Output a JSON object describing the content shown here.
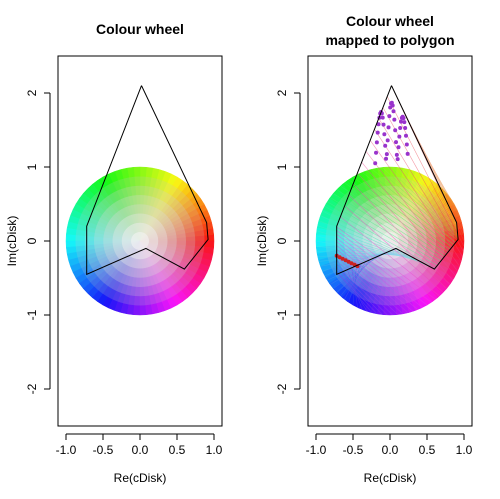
{
  "chart_data": [
    {
      "type": "scatter",
      "title": "Colour wheel",
      "xlabel": "Re(cDisk)",
      "ylabel": "Im(cDisk)",
      "xlim": [
        -1.0,
        1.0
      ],
      "ylim": [
        -2.5,
        2.5
      ],
      "x_ticks": [
        -1.0,
        -0.5,
        0.0,
        0.5,
        1.0
      ],
      "x_tick_labels": [
        "-1.0",
        "-0.5",
        "0.0",
        "0.5",
        "1.0"
      ],
      "y_ticks": [
        -2,
        -1,
        0,
        1,
        2
      ],
      "y_tick_labels": [
        "-2",
        "-1",
        "0",
        "1",
        "2"
      ],
      "disk": {
        "center": [
          0,
          0
        ],
        "radius": 1.0,
        "coloring": "hue by argument, saturation by modulus"
      },
      "polygon": [
        [
          0.02,
          2.1
        ],
        [
          0.9,
          0.25
        ],
        [
          0.92,
          0.02
        ],
        [
          0.6,
          -0.38
        ],
        [
          0.08,
          -0.1
        ],
        [
          -0.72,
          -0.45
        ],
        [
          -0.72,
          0.2
        ],
        [
          0.02,
          2.1
        ]
      ]
    },
    {
      "type": "scatter",
      "title": "Colour wheel\nmapped to polygon",
      "title_lines": [
        "Colour wheel",
        "mapped to polygon"
      ],
      "xlabel": "Re(cDisk)",
      "ylabel": "Im(cDisk)",
      "xlim": [
        -1.0,
        1.0
      ],
      "ylim": [
        -2.5,
        2.5
      ],
      "x_ticks": [
        -1.0,
        -0.5,
        0.0,
        0.5,
        1.0
      ],
      "x_tick_labels": [
        "-1.0",
        "-0.5",
        "0.0",
        "0.5",
        "1.0"
      ],
      "y_ticks": [
        -2,
        -1,
        0,
        1,
        2
      ],
      "y_tick_labels": [
        "-2",
        "-1",
        "0",
        "1",
        "2"
      ],
      "disk": {
        "center": [
          0,
          0
        ],
        "radius": 1.0,
        "coloring": "hue by argument, saturation by modulus"
      },
      "polygon": [
        [
          0.02,
          2.1
        ],
        [
          0.9,
          0.25
        ],
        [
          0.92,
          0.02
        ],
        [
          0.6,
          -0.38
        ],
        [
          0.08,
          -0.1
        ],
        [
          -0.72,
          -0.45
        ],
        [
          -0.72,
          0.2
        ],
        [
          0.02,
          2.1
        ]
      ],
      "mapping_lines": "rays from disk boundary to polygon"
    }
  ],
  "colors": {
    "axis": "#000000",
    "polygon": "#000000",
    "marker": "#9933cc",
    "marker_red": "#cc2222"
  }
}
